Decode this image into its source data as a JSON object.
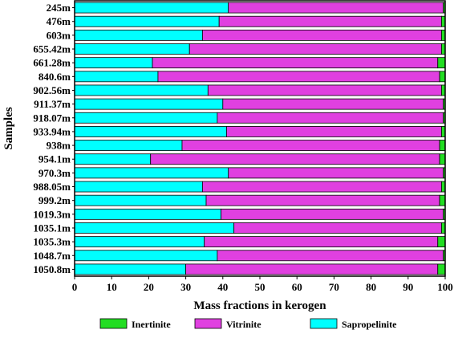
{
  "chart_data": {
    "type": "bar",
    "orientation": "horizontal",
    "stacked": true,
    "xlabel": "Mass fractions in kerogen",
    "ylabel": "Samples",
    "xlim": [
      0,
      100
    ],
    "xticks": [
      0,
      10,
      20,
      30,
      40,
      50,
      60,
      70,
      80,
      90,
      100
    ],
    "grid": false,
    "legend_position": "bottom",
    "categories": [
      "245m",
      "476m",
      "603m",
      "655.42m",
      "661.28m",
      "840.6m",
      "902.56m",
      "911.37m",
      "918.07m",
      "933.94m",
      "938m",
      "954.1m",
      "970.3m",
      "988.05m",
      "999.2m",
      "1019.3m",
      "1035.1m",
      "1035.3m",
      "1048.7m",
      "1050.8m"
    ],
    "series": [
      {
        "name": "Sapropelinite",
        "color": "#00ffff",
        "values": [
          41.5,
          39,
          34.5,
          31,
          21,
          22.5,
          36,
          40,
          38.5,
          41,
          29,
          20.5,
          41.5,
          34.5,
          35.5,
          39.5,
          43,
          35,
          38.5,
          30
        ]
      },
      {
        "name": "Vitrinite",
        "color": "#e040e0",
        "values": [
          58,
          60,
          64.5,
          68,
          77,
          76,
          63,
          59.5,
          61,
          58,
          69.5,
          78,
          58,
          64.5,
          63,
          60,
          56,
          63,
          61,
          68
        ]
      },
      {
        "name": "Inertinite",
        "color": "#22dd22",
        "values": [
          0.5,
          1,
          1,
          1,
          2,
          1.5,
          1,
          0.5,
          0.5,
          1,
          1.5,
          1.5,
          0.5,
          1,
          1.5,
          0.5,
          1,
          2,
          0.5,
          2
        ]
      }
    ],
    "legend_order": [
      "Inertinite",
      "Vitrinite",
      "Sapropelinite"
    ]
  }
}
